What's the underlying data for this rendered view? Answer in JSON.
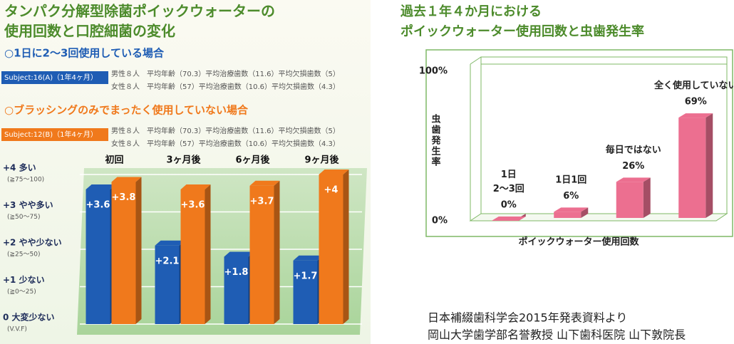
{
  "chart_data": [
    {
      "type": "bar",
      "title": [
        "タンパク分解型除菌ポイックウォーターの",
        "使用回数と口腔細菌の変化"
      ],
      "categories": [
        "初回",
        "3ヶ月後",
        "6ヶ月後",
        "9ヶ月後"
      ],
      "series": [
        {
          "name": "Subject:16(A)（1年4ヶ月）",
          "heading": "○1日に2～3回使用している場合",
          "color": "#1f5db4",
          "details": [
            "男性８人　平均年齢（70.3）平均治療歯数（11.6）平均欠損歯数（5）",
            "女性８人　平均年齢（57）平均治療歯数（10.6）平均欠損歯数（4.3）"
          ],
          "values": [
            3.6,
            2.1,
            1.8,
            1.7
          ],
          "value_labels": [
            "+3.6",
            "+2.1",
            "+1.8",
            "+1.7"
          ]
        },
        {
          "name": "Subject:12(B)（1年4ヶ月）",
          "heading": "○ブラッシングのみでまったく使用していない場合",
          "color": "#f0791c",
          "details": [
            "男性８人　平均年齢（70.3）平均治療歯数（11.6）平均欠損歯数（5）",
            "女性８人　平均年齢（57）平均治療歯数（10.6）平均欠損歯数（4.3）"
          ],
          "values": [
            3.8,
            3.6,
            3.7,
            4
          ],
          "value_labels": [
            "+3.8",
            "+3.6",
            "+3.7",
            "+4"
          ]
        }
      ],
      "ylim": [
        0,
        4
      ],
      "yticks": [
        {
          "value": 0,
          "label": "0 大変少ない"
        },
        {
          "value": 1,
          "label": "+1 少ない"
        },
        {
          "value": 2,
          "label": "+2 やや少ない"
        },
        {
          "value": 3,
          "label": "+3 やや多い"
        },
        {
          "value": 4,
          "label": "+4 多い"
        }
      ],
      "ytick_notes": [
        "(V.V.F)",
        "(≧0～25)",
        "(≧25～50)",
        "(≧50～75)",
        "(≧75～100)"
      ],
      "grid": true
    },
    {
      "type": "bar",
      "title": [
        "過去１年４か月における",
        "ポイックウォーター使用回数と虫歯発生率"
      ],
      "categories": [
        "1日\n2～3回",
        "1日1回",
        "毎日ではない",
        "全く使用していない"
      ],
      "values": [
        0,
        6,
        26,
        69
      ],
      "value_labels": [
        "0%",
        "6%",
        "26%",
        "69%"
      ],
      "color": "#ec6f90",
      "ylabel": "虫歯発生率",
      "xlabel": "ポイックウォーター使用回数",
      "ylim": [
        0,
        100
      ],
      "yticks": [
        {
          "value": 0,
          "label": "0%"
        },
        {
          "value": 100,
          "label": "100%"
        }
      ],
      "grid": true
    }
  ],
  "source": [
    "日本補綴歯科学会2015年発表資料より",
    "岡山大学歯学部名誉教授 山下歯科医院 山下敦院長"
  ]
}
